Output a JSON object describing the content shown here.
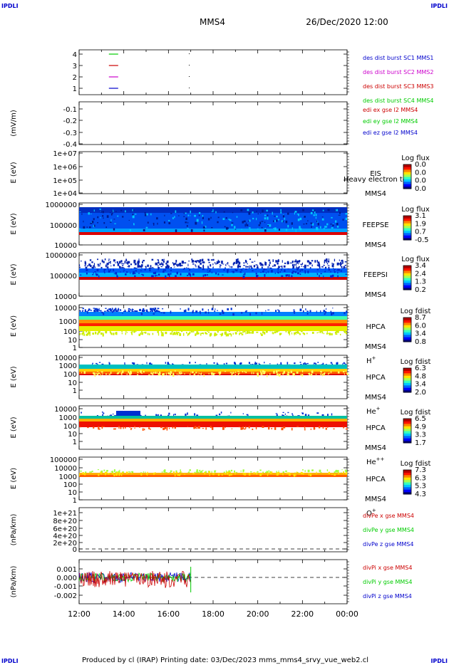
{
  "header": {
    "corner_tl": "IPDLI",
    "corner_tr": "IPDLI",
    "corner_bl": "IPDLI",
    "corner_br": "IPDLI",
    "title": "MMS4",
    "date": "26/Dec/2020 12:00"
  },
  "footer": {
    "text": "Produced by cl (IRAP)   Printing date: 03/Dec/2023   mms_mms4_srvy_vue_web2.cl"
  },
  "chart_data": [
    {
      "type": "line",
      "name": "burst",
      "yticks": [
        "4",
        "3",
        "2",
        "1"
      ],
      "legend": [
        {
          "label": "des dist burst SC1 MMS1",
          "color": "#0000cc"
        },
        {
          "label": "des dist burst SC2 MMS2",
          "color": "#cc00cc"
        },
        {
          "label": "des dist burst SC3 MMS3",
          "color": "#cc0000"
        },
        {
          "label": "des dist burst SC4 MMS4",
          "color": "#00cc00"
        }
      ],
      "series": [
        {
          "y": 4,
          "x_start": "13:20",
          "x_end": "13:45",
          "color": "#00cc00"
        },
        {
          "y": 3,
          "x_start": "13:20",
          "x_end": "13:45",
          "color": "#cc0000"
        },
        {
          "y": 2,
          "x_start": "13:20",
          "x_end": "13:45",
          "color": "#cc00cc"
        },
        {
          "y": 1,
          "x_start": "13:20",
          "x_end": "13:45",
          "color": "#0000cc"
        }
      ]
    },
    {
      "type": "line",
      "name": "edi",
      "ylabel": "(mV/m)",
      "yticks": [
        "-0.1",
        "-0.2",
        "-0.3",
        "-0.4"
      ],
      "legend": [
        {
          "label": "edi ex gse l2 MMS4",
          "color": "#cc0000"
        },
        {
          "label": "edi ey gse l2 MMS4",
          "color": "#00cc00"
        },
        {
          "label": "edi ez gse l2 MMS4",
          "color": "#0000cc"
        }
      ]
    },
    {
      "type": "heatmap",
      "name": "eis",
      "ylabel": "E (eV)",
      "yticks": [
        "1e+07",
        "1e+06",
        "1e+05",
        "1e+04"
      ],
      "labels": [
        "EIS",
        "MMS4"
      ],
      "overlay": "Heavy electron to",
      "colorbar": {
        "title": "Log flux",
        "ticks": [
          "0.0",
          "0.0",
          "0.0",
          "0.0"
        ]
      }
    },
    {
      "type": "heatmap",
      "name": "feepse",
      "ylabel": "E (eV)",
      "yticks": [
        "1000000",
        "100000",
        "10000"
      ],
      "labels": [
        "FEEPSE",
        "MMS4"
      ],
      "colorbar": {
        "title": "Log flux",
        "ticks": [
          "3.1",
          "1.9",
          "0.7",
          "-0.5"
        ]
      }
    },
    {
      "type": "heatmap",
      "name": "feepsi",
      "ylabel": "E (eV)",
      "yticks": [
        "1000000",
        "100000",
        "10000"
      ],
      "labels": [
        "FEEPSI",
        "MMS4"
      ],
      "colorbar": {
        "title": "Log flux",
        "ticks": [
          "3.4",
          "2.4",
          "1.3",
          "0.2"
        ]
      }
    },
    {
      "type": "heatmap",
      "name": "hpca-h",
      "ylabel": "E (eV)",
      "yticks": [
        "10000",
        "1000",
        "100",
        "10",
        "1"
      ],
      "labels": [
        "HPCA",
        "MMS4"
      ],
      "species": "H",
      "species_sup": "+",
      "colorbar": {
        "title": "Log fdist",
        "ticks": [
          "8.7",
          "6.0",
          "3.4",
          "0.8"
        ]
      }
    },
    {
      "type": "heatmap",
      "name": "hpca-he",
      "ylabel": "E (eV)",
      "yticks": [
        "10000",
        "1000",
        "100",
        "10",
        "1"
      ],
      "labels": [
        "HPCA",
        "MMS4"
      ],
      "species": "He",
      "species_sup": "+",
      "colorbar": {
        "title": "Log fdist",
        "ticks": [
          "6.3",
          "4.8",
          "3.4",
          "2.0"
        ]
      }
    },
    {
      "type": "heatmap",
      "name": "hpca-hepp",
      "ylabel": "E (eV)",
      "yticks": [
        "10000",
        "1000",
        "100",
        "10",
        "1"
      ],
      "labels": [
        "HPCA",
        "MMS4"
      ],
      "species": "He",
      "species_sup": "++",
      "colorbar": {
        "title": "Log fdist",
        "ticks": [
          "6.5",
          "4.9",
          "3.3",
          "1.7"
        ]
      }
    },
    {
      "type": "heatmap",
      "name": "hpca-o",
      "ylabel": "E (eV)",
      "yticks": [
        "100000",
        "10000",
        "1000",
        "100",
        "10",
        "1"
      ],
      "labels": [
        "HPCA",
        "MMS4"
      ],
      "species": "O",
      "species_sup": "+",
      "colorbar": {
        "title": "Log fdist",
        "ticks": [
          "7.3",
          "6.3",
          "5.3",
          "4.3"
        ]
      }
    },
    {
      "type": "line",
      "name": "divpe",
      "ylabel": "(nPa/km)",
      "yticks": [
        "1e+21",
        "8e+20",
        "6e+20",
        "4e+20",
        "2e+20",
        "0"
      ],
      "legend": [
        {
          "label": "divPe x gse MMS4",
          "color": "#cc0000"
        },
        {
          "label": "divPe y gse MMS4",
          "color": "#00cc00"
        },
        {
          "label": "divPe z gse MMS4",
          "color": "#0000cc"
        }
      ]
    },
    {
      "type": "line",
      "name": "divpi",
      "ylabel": "(nPa/km)",
      "yticks": [
        "0.001",
        "0.000",
        "-0.001",
        "-0.002"
      ],
      "legend": [
        {
          "label": "divPi x gse MMS4",
          "color": "#cc0000"
        },
        {
          "label": "divPi y gse MMS4",
          "color": "#00cc00"
        },
        {
          "label": "divPi z gse MMS4",
          "color": "#0000cc"
        }
      ],
      "x_data_end": "17:00"
    }
  ],
  "xaxis": {
    "ticks": [
      "12:00",
      "14:00",
      "16:00",
      "18:00",
      "20:00",
      "22:00",
      "00:00"
    ]
  }
}
